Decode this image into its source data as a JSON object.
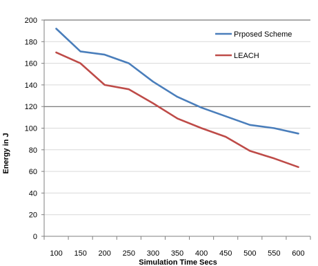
{
  "chart_data": {
    "type": "line",
    "x": [
      100,
      150,
      200,
      250,
      300,
      350,
      400,
      450,
      500,
      550,
      600
    ],
    "series": [
      {
        "name": "Prposed Scheme",
        "color": "#4a7ebb",
        "values": [
          192,
          171,
          168,
          160,
          143,
          129,
          119,
          111,
          103,
          100,
          95
        ]
      },
      {
        "name": "LEACH",
        "color": "#be4b48",
        "values": [
          170,
          160,
          140,
          136,
          123,
          109,
          100,
          92,
          79,
          72,
          64
        ]
      }
    ],
    "xlabel": "Simulation Time Secs",
    "ylabel": "Energy in J",
    "ylim": [
      0,
      200
    ],
    "yticks": [
      0,
      20,
      40,
      60,
      80,
      100,
      120,
      140,
      160,
      180,
      200
    ],
    "xticks": [
      "100",
      "150",
      "200",
      "250",
      "300",
      "350",
      "400",
      "450",
      "500",
      "550",
      "600"
    ],
    "grid": "horizontal major at 20,120,200 visible",
    "legend_position": "top-right"
  }
}
